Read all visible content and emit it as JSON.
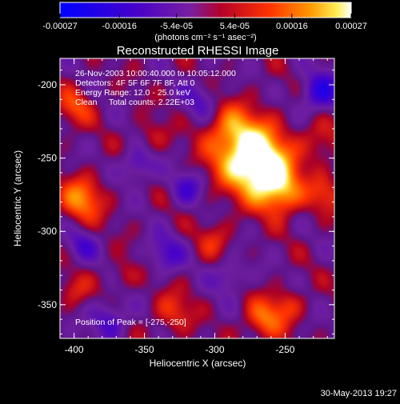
{
  "chart_data": {
    "type": "heatmap",
    "title": "Reconstructed RHESSI Image",
    "xlabel": "Heliocentric X (arcsec)",
    "ylabel": "Heliocentric Y (arcsec)",
    "xlim": [
      -410,
      -215
    ],
    "ylim": [
      -373,
      -182
    ],
    "x_ticks": [
      -400,
      -350,
      -300,
      -250
    ],
    "x_tick_labels": [
      "-400",
      "-350",
      "-300",
      "-250"
    ],
    "y_ticks": [
      -200,
      -250,
      -300,
      -350
    ],
    "y_tick_labels": [
      "-200",
      "-250",
      "-300",
      "-350"
    ],
    "colorbar": {
      "min": -0.00027,
      "max": 0.00027,
      "ticks": [
        -0.00027,
        -0.00016,
        -5.4e-05,
        5.4e-05,
        0.00016,
        0.00027
      ],
      "tick_labels": [
        "-0.00027",
        "-0.00016",
        "-5.4e-05",
        "5.4e-05",
        "0.00016",
        "0.00027"
      ],
      "unit_label": "(photons cm⁻² s⁻¹ asec⁻²)",
      "colormap": "blue-purple-red-orange-yellow-white"
    },
    "annotations": [
      "26-Nov-2003 10:00:40.000 to 10:05:12.000",
      "Detectors: 4F 5F 6F 7F 8F, Att 0",
      "Energy Range: 12.0 - 25.0 keV",
      "Clean     Total counts: 2.22E+03"
    ],
    "peak_label": "Position of Peak = [-275,-250]",
    "peak": {
      "x": -275,
      "y": -250,
      "value": 0.00027
    },
    "sources": [
      {
        "x": -277,
        "y": -246,
        "sigma": 17,
        "amp": 1.25
      },
      {
        "x": -262,
        "y": -262,
        "sigma": 14,
        "amp": 0.9
      },
      {
        "x": -252,
        "y": -275,
        "sigma": 10,
        "amp": 0.55
      },
      {
        "x": -292,
        "y": -228,
        "sigma": 11,
        "amp": 0.35
      },
      {
        "x": -395,
        "y": -278,
        "sigma": 11,
        "amp": 0.75
      },
      {
        "x": -400,
        "y": -215,
        "sigma": 9,
        "amp": 0.5
      },
      {
        "x": -225,
        "y": -238,
        "sigma": 10,
        "amp": 0.4
      },
      {
        "x": -222,
        "y": -275,
        "sigma": 9,
        "amp": 0.45
      },
      {
        "x": -300,
        "y": -305,
        "sigma": 9,
        "amp": 0.35
      },
      {
        "x": -330,
        "y": -355,
        "sigma": 10,
        "amp": 0.45
      },
      {
        "x": -265,
        "y": -360,
        "sigma": 10,
        "amp": 0.65
      },
      {
        "x": -248,
        "y": -350,
        "sigma": 8,
        "amp": 0.4
      },
      {
        "x": -400,
        "y": -340,
        "sigma": 8,
        "amp": 0.35
      },
      {
        "x": -365,
        "y": -330,
        "sigma": 7,
        "amp": 0.3
      },
      {
        "x": -345,
        "y": -235,
        "sigma": 8,
        "amp": 0.3
      },
      {
        "x": -375,
        "y": -360,
        "sigma": 9,
        "amp": -0.55
      },
      {
        "x": -320,
        "y": -270,
        "sigma": 8,
        "amp": -0.5
      },
      {
        "x": -355,
        "y": -255,
        "sigma": 8,
        "amp": -0.55
      },
      {
        "x": -335,
        "y": -315,
        "sigma": 9,
        "amp": -0.5
      },
      {
        "x": -225,
        "y": -205,
        "sigma": 10,
        "amp": -0.75
      },
      {
        "x": -395,
        "y": -310,
        "sigma": 8,
        "amp": -0.45
      },
      {
        "x": -290,
        "y": -330,
        "sigma": 8,
        "amp": -0.45
      },
      {
        "x": -310,
        "y": -210,
        "sigma": 9,
        "amp": -0.4
      }
    ],
    "legend": "none",
    "grid": false
  },
  "footer": {
    "date": "30-May-2013 19:27"
  }
}
